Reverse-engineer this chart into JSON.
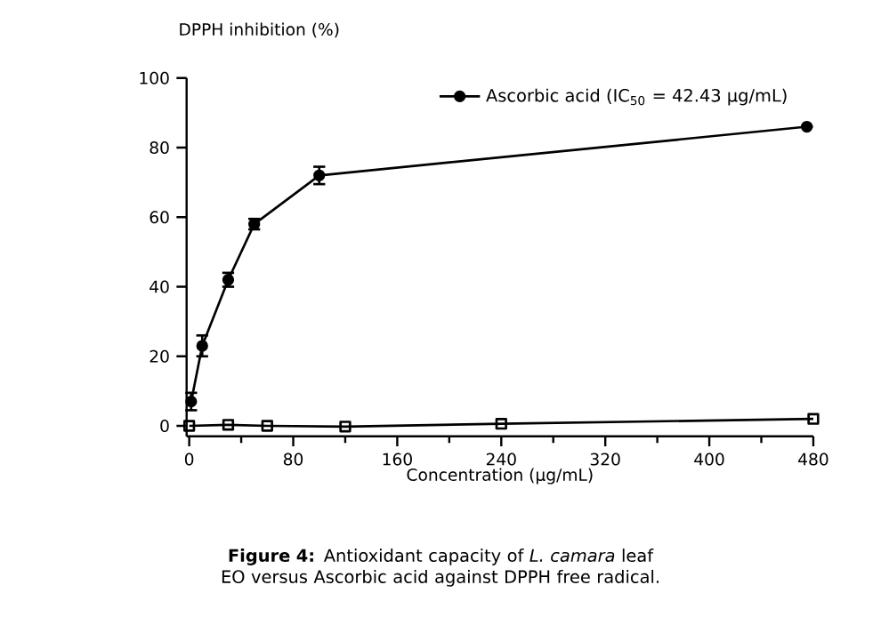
{
  "chart_data": {
    "type": "line",
    "ylabel": "DPPH inhibition (%)",
    "xlabel": "Concentration (µg/mL)",
    "annotations": [
      "**Figure 4:** Antioxidant capacity of *L. camara* leaf EO versus Ascorbic acid against DPPH free radical."
    ],
    "series": [
      {
        "name": "Ascorbic acid (IC$_{50}$ = 42.43 µg/mL)",
        "color": "#000000",
        "marker": "circle",
        "x": [
          1.5,
          10,
          30,
          50,
          100,
          475
        ],
        "values": [
          7,
          23,
          42,
          58,
          72,
          86
        ],
        "errors": [
          2.5,
          3,
          2,
          1.5,
          2.5,
          null
        ]
      },
      {
        "color": "#000000",
        "marker": "square",
        "x": [
          0,
          30,
          60,
          120,
          240,
          480
        ],
        "values": [
          0,
          0.3,
          0,
          -0.2,
          0.6,
          2
        ]
      }
    ],
    "xlim": [
      -2,
      480
    ],
    "ylim": [
      -3,
      100
    ],
    "xticks": [
      0,
      80,
      160,
      240,
      320,
      400,
      480
    ],
    "yticks": [
      0,
      20,
      40,
      60,
      80,
      100
    ],
    "legend": "top right",
    "grid": false,
    "line_style": "solid"
  }
}
